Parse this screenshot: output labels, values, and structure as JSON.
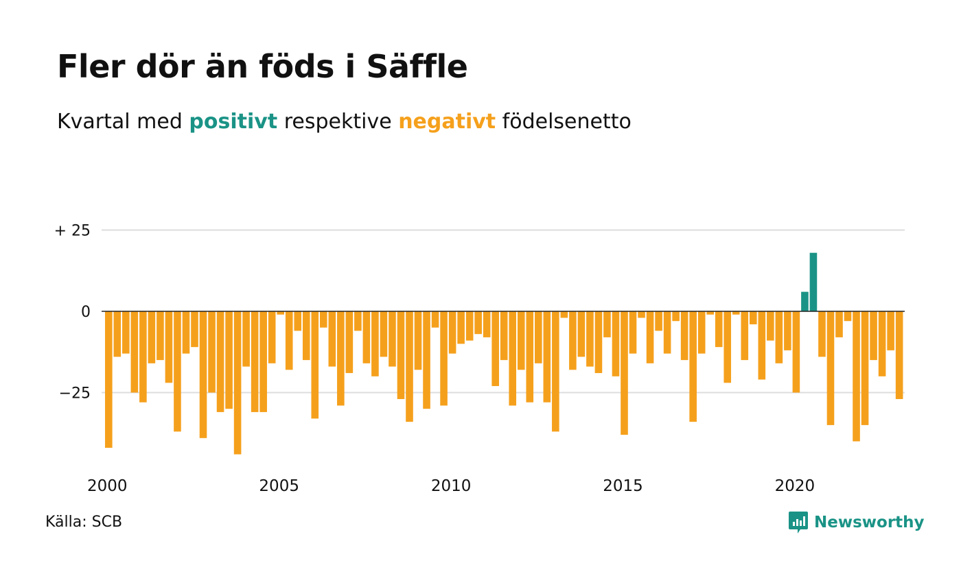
{
  "title": "Fler dör än föds i Säffle",
  "subtitle": {
    "prefix": "Kvartal med ",
    "positive_word": "positivt",
    "middle": " respektive ",
    "negative_word": "negativt",
    "suffix": " födelsenetto"
  },
  "source": "Källa: SCB",
  "brand": "Newsworthy",
  "colors": {
    "positive": "#1a9386",
    "negative": "#f5a01c",
    "grid": "#dddddd",
    "zero_line": "#222222",
    "text": "#111111"
  },
  "chart_data": {
    "type": "bar",
    "title": "Fler dör än föds i Säffle",
    "subtitle": "Kvartal med positivt respektive negativt födelsenetto",
    "xlabel": "",
    "ylabel": "",
    "x_start": "2000 Q1",
    "x_tick_labels": [
      "2000",
      "2005",
      "2010",
      "2015",
      "2020"
    ],
    "y_tick_labels": [
      "+ 25",
      "0",
      "−25"
    ],
    "y_ticks": [
      25,
      0,
      -25
    ],
    "ylim": [
      -45,
      27
    ],
    "grid": true,
    "values": [
      -42,
      -14,
      -13,
      -25,
      -28,
      -16,
      -15,
      -22,
      -37,
      -13,
      -11,
      -39,
      -25,
      -31,
      -30,
      -44,
      -17,
      -31,
      -31,
      -16,
      -1,
      -18,
      -6,
      -15,
      -33,
      -5,
      -17,
      -29,
      -19,
      -6,
      -16,
      -20,
      -14,
      -17,
      -27,
      -34,
      -18,
      -30,
      -5,
      -29,
      -13,
      -10,
      -9,
      -7,
      -8,
      -23,
      -15,
      -29,
      -18,
      -28,
      -16,
      -28,
      -37,
      -2,
      -18,
      -14,
      -17,
      -19,
      -8,
      -20,
      -38,
      -13,
      -2,
      -16,
      -6,
      -13,
      -3,
      -15,
      -34,
      -13,
      -1,
      -11,
      -22,
      -1,
      -15,
      -4,
      -21,
      -9,
      -16,
      -12,
      -25,
      6,
      18,
      -14,
      -35,
      -8,
      -3,
      -40,
      -35,
      -15,
      -20,
      -12,
      -27
    ]
  }
}
